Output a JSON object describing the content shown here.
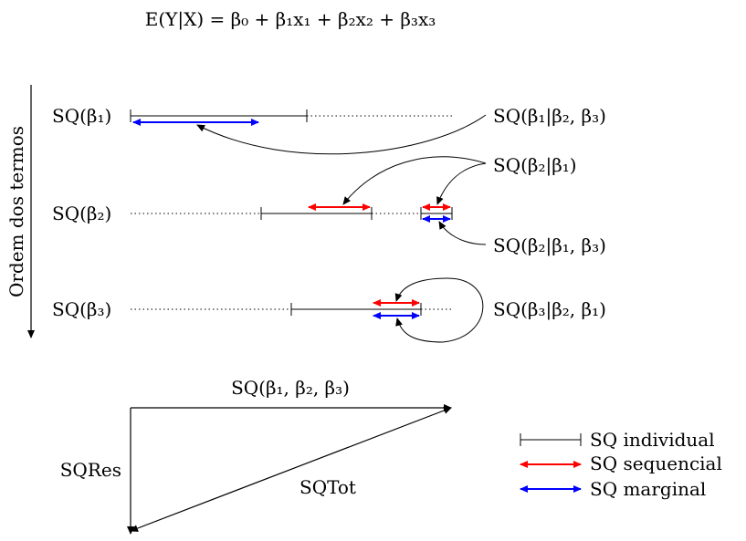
{
  "equation": "E(Y|X) = β₀ + β₁x₁ + β₂x₂ + β₃x₃",
  "axis_label": "Ordem dos termos",
  "rows": [
    {
      "left_label": "SQ(β₁)",
      "right_label": "SQ(β₁|β₂, β₃)"
    },
    {
      "left_label": "SQ(β₂)",
      "top_label": "SQ(β₂|β₁)",
      "right_label": "SQ(β₂|β₁, β₃)"
    },
    {
      "left_label": "SQ(β₃)",
      "right_label": "SQ(β₃|β₂, β₁)"
    }
  ],
  "triangle": {
    "top_label": "SQ(β₁, β₂, β₃)",
    "left_label": "SQRes",
    "hyp_label": "SQTot"
  },
  "legend": [
    {
      "label": "SQ individual",
      "color": "#000000"
    },
    {
      "label": "SQ sequencial",
      "color": "#ff0000"
    },
    {
      "label": "SQ marginal",
      "color": "#0000ff"
    }
  ],
  "colors": {
    "individual": "#000000",
    "sequencial": "#ff0000",
    "marginal": "#0000ff"
  }
}
